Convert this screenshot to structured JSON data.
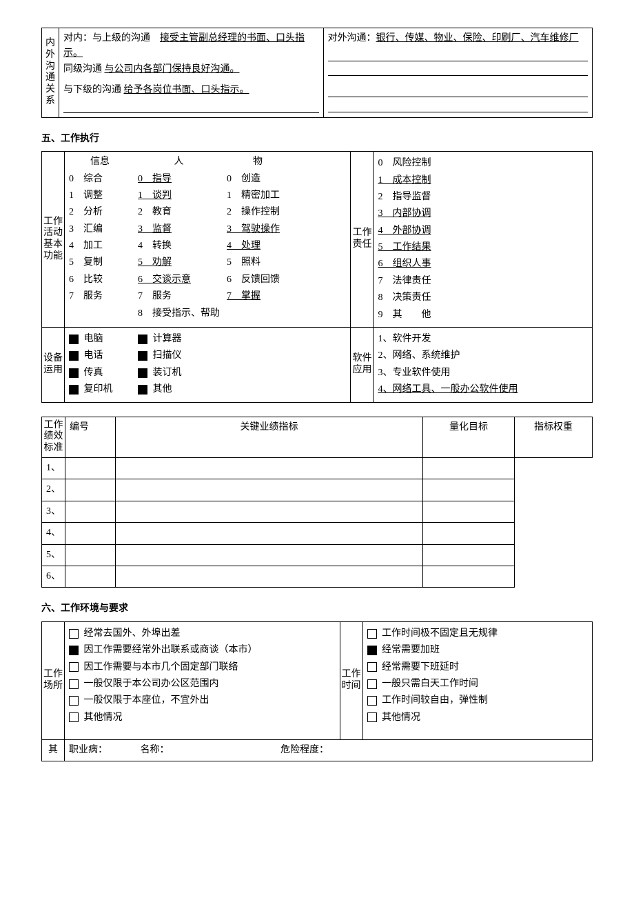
{
  "communication": {
    "label": "内外沟通关系",
    "internal": {
      "top_label": "对内：与上级的沟通",
      "top_content": "接受主管副总经理的书面、口头指示。",
      "peer_label": "同级沟通",
      "peer_content": "与公司内各部门保持良好沟通。",
      "down_label": "与下级的沟通",
      "down_content": "给予各岗位书面、口头指示。"
    },
    "external": {
      "label": "对外沟通：",
      "content": "银行、传媒、物业、保险、印刷厂、汽车维修厂"
    }
  },
  "section5_title": "五、工作执行",
  "work_activity": {
    "label": "工作活动基本功能",
    "col_info": {
      "header": "信息",
      "items": [
        "0　综合",
        "1　调整",
        "2　分析",
        "3　汇编",
        "4　加工",
        "5　复制",
        "6　比较",
        "7　服务"
      ]
    },
    "col_people": {
      "header": "人",
      "items": [
        {
          "t": "0　指导",
          "u": true
        },
        {
          "t": "1　谈判",
          "u": true
        },
        {
          "t": "2　教育",
          "u": false
        },
        {
          "t": "3　监督",
          "u": true
        },
        {
          "t": "4　转换",
          "u": false
        },
        {
          "t": "5　劝解",
          "u": true
        },
        {
          "t": "6　交谈示意",
          "u": true
        },
        {
          "t": "7　服务",
          "u": false
        },
        {
          "t": "8　接受指示、帮助",
          "u": false
        }
      ]
    },
    "col_thing": {
      "header": "物",
      "items": [
        {
          "t": "0　创造",
          "u": false
        },
        {
          "t": "1　精密加工",
          "u": false
        },
        {
          "t": "2　操作控制",
          "u": false
        },
        {
          "t": "3　驾驶操作",
          "u": true
        },
        {
          "t": "4　处理",
          "u": true
        },
        {
          "t": "5　照料",
          "u": false
        },
        {
          "t": "6　反馈回馈",
          "u": false
        },
        {
          "t": "7　掌握",
          "u": true
        }
      ]
    }
  },
  "responsibility": {
    "label": "工作责任",
    "items": [
      {
        "t": "0　风险控制",
        "u": false
      },
      {
        "t": "1　成本控制",
        "u": true
      },
      {
        "t": "2　指导监督",
        "u": false
      },
      {
        "t": "3　内部协调",
        "u": true
      },
      {
        "t": "4　外部协调",
        "u": true
      },
      {
        "t": "5　工作结果",
        "u": true
      },
      {
        "t": "6　组织人事",
        "u": true
      },
      {
        "t": "7　法律责任",
        "u": false
      },
      {
        "t": "8　决策责任",
        "u": false
      },
      {
        "t": "9　其　　他",
        "u": false
      }
    ]
  },
  "equipment": {
    "label": "设备运用",
    "col1": [
      {
        "t": "电脑",
        "c": true
      },
      {
        "t": "电话",
        "c": true
      },
      {
        "t": "传真",
        "c": true
      },
      {
        "t": "复印机",
        "c": true
      }
    ],
    "col2": [
      {
        "t": "计算器",
        "c": true
      },
      {
        "t": "扫描仪",
        "c": true
      },
      {
        "t": "装订机",
        "c": true
      },
      {
        "t": "其他",
        "c": true
      }
    ]
  },
  "software": {
    "label": "软件应用",
    "items": [
      {
        "t": "1、软件开发",
        "u": false
      },
      {
        "t": "2、网络、系统维护",
        "u": false
      },
      {
        "t": "3、专业软件使用",
        "u": false
      },
      {
        "t": "4、网络工具、一般办公软件使用",
        "u": true
      }
    ]
  },
  "kpi": {
    "label": "工作绩效标准",
    "headers": [
      "编号",
      "关键业绩指标",
      "量化目标",
      "指标权重"
    ],
    "rows": [
      "1、",
      "2、",
      "3、",
      "4、",
      "5、",
      "6、"
    ]
  },
  "section6_title": "六、工作环境与要求",
  "workplace": {
    "label": "工作场所",
    "items": [
      {
        "t": "经常去国外、外埠出差",
        "c": false
      },
      {
        "t": "因工作需要经常外出联系或商谈（本市）",
        "c": true
      },
      {
        "t": "因工作需要与本市几个固定部门联络",
        "c": false
      },
      {
        "t": "一般仅限于本公司办公区范围内",
        "c": false
      },
      {
        "t": "一般仅限于本座位，不宜外出",
        "c": false
      },
      {
        "t": "其他情况",
        "c": false
      }
    ]
  },
  "worktime": {
    "label": "工作时间",
    "items": [
      {
        "t": "工作时间极不固定且无规律",
        "c": false
      },
      {
        "t": "经常需要加班",
        "c": true
      },
      {
        "t": "经常需要下班延时",
        "c": false
      },
      {
        "t": "一般只需白天工作时间",
        "c": false
      },
      {
        "t": "工作时间较自由，弹性制",
        "c": false
      },
      {
        "t": "其他情况",
        "c": false
      }
    ]
  },
  "other": {
    "label": "其",
    "disease_label": "职业病：",
    "name_label": "名称：",
    "danger_label": "危险程度："
  }
}
